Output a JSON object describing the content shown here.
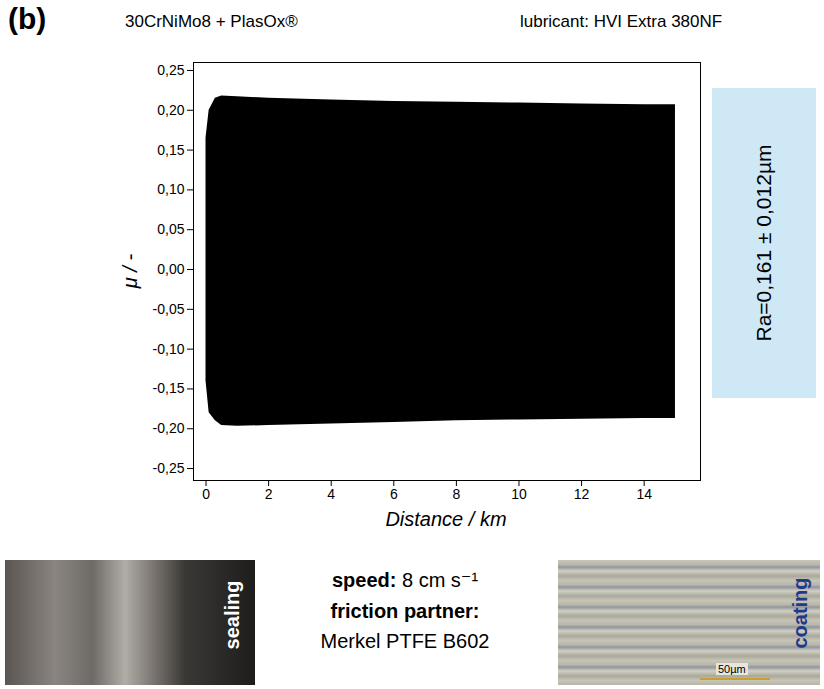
{
  "chart_data": {
    "type": "area",
    "panel": "(b)",
    "title": "30CrNiMo8 + PlasOx®",
    "subtitle": "lubricant: HVI Extra 380NF",
    "x_label": "Distance / km",
    "y_label": "μ / -",
    "x": [
      0,
      0.1,
      0.3,
      0.5,
      1,
      2,
      4,
      6,
      8,
      10,
      12,
      14,
      15
    ],
    "upper": [
      0.165,
      0.2,
      0.215,
      0.218,
      0.217,
      0.215,
      0.213,
      0.211,
      0.21,
      0.209,
      0.208,
      0.207,
      0.207
    ],
    "lower": [
      -0.14,
      -0.18,
      -0.19,
      -0.196,
      -0.197,
      -0.196,
      -0.194,
      -0.192,
      -0.19,
      -0.189,
      -0.188,
      -0.187,
      -0.187
    ],
    "color": "#000000",
    "xlim": [
      -0.4,
      15.8
    ],
    "xticks": [
      0,
      2,
      4,
      6,
      8,
      10,
      12,
      14
    ],
    "ylim": [
      -0.265,
      0.26
    ],
    "yticks": [
      {
        "value": -0.25,
        "label": "-0,25"
      },
      {
        "value": -0.2,
        "label": "-0,20"
      },
      {
        "value": -0.15,
        "label": "-0,15"
      },
      {
        "value": -0.1,
        "label": "-0,10"
      },
      {
        "value": -0.05,
        "label": "-0,05"
      },
      {
        "value": 0,
        "label": "0,00"
      },
      {
        "value": 0.05,
        "label": "0,05"
      },
      {
        "value": 0.1,
        "label": "0,10"
      },
      {
        "value": 0.15,
        "label": "0,15"
      },
      {
        "value": 0.2,
        "label": "0,20"
      },
      {
        "value": 0.25,
        "label": "0,25"
      }
    ],
    "grid": false,
    "roughness": "Ra=0,161 ± 0,012µm",
    "speed_label": "speed:",
    "speed": "8 cm s⁻¹",
    "partner_label": "friction partner:",
    "partner": "Merkel PTFE B602",
    "image_labels": {
      "left": "sealing",
      "right": "coating",
      "scale_bar": "50µm"
    }
  }
}
